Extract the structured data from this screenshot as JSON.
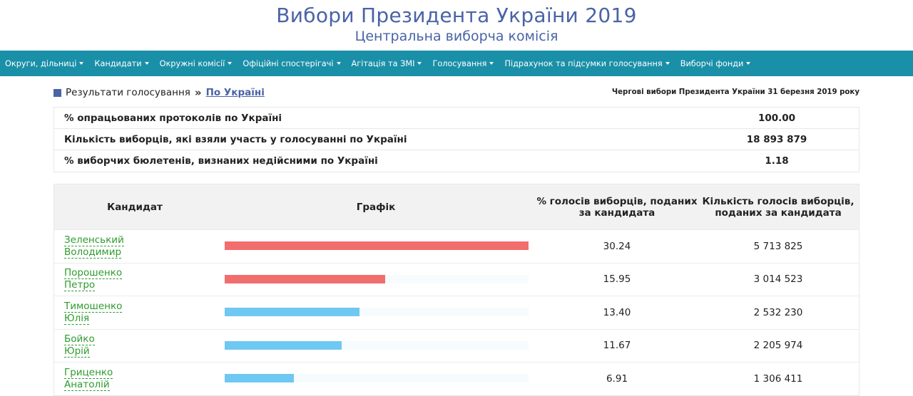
{
  "header": {
    "title": "Вибори Президента України 2019",
    "subtitle": "Центральна виборча комісія"
  },
  "nav": [
    {
      "label": "Округи, дільниці"
    },
    {
      "label": "Кандидати"
    },
    {
      "label": "Окружні комісії"
    },
    {
      "label": "Офіційні спостерігачі"
    },
    {
      "label": "Агітація та ЗМІ"
    },
    {
      "label": "Голосування"
    },
    {
      "label": "Підрахунок та підсумки голосування"
    },
    {
      "label": "Виборчі фонди"
    }
  ],
  "breadcrumb": {
    "section": "Результати голосування",
    "separator": "»",
    "current": "По Україні"
  },
  "election_note": "Чергові вибори Президента України 31 березня 2019 року",
  "summary": [
    {
      "label": "% опрацьованих протоколів по Україні",
      "value": "100.00"
    },
    {
      "label": "Кількість виборців, які взяли участь у голосуванні по Україні",
      "value": "18 893 879"
    },
    {
      "label": "% виборчих бюлетенів, визнаних недійсними по Україні",
      "value": "1.18"
    }
  ],
  "results": {
    "headers": {
      "candidate": "Кандидат",
      "chart": "Графік",
      "percent": "% голосів виборців, поданих за кандидата",
      "votes": "Кількість голосів виборців, поданих за кандидата"
    },
    "max_percent": 30.24,
    "colors": {
      "leader": "#f26d6d",
      "other": "#6ec8f2"
    },
    "rows": [
      {
        "surname": "Зеленський",
        "name": "Володимир",
        "percent": "30.24",
        "votes": "5 713 825",
        "pct_value": 30.24,
        "leader": true
      },
      {
        "surname": "Порошенко",
        "name": "Петро",
        "percent": "15.95",
        "votes": "3 014 523",
        "pct_value": 15.95,
        "leader": true
      },
      {
        "surname": "Тимошенко",
        "name": "Юлія",
        "percent": "13.40",
        "votes": "2 532 230",
        "pct_value": 13.4,
        "leader": false
      },
      {
        "surname": "Бойко",
        "name": "Юрій",
        "percent": "11.67",
        "votes": "2 205 974",
        "pct_value": 11.67,
        "leader": false
      },
      {
        "surname": "Гриценко",
        "name": "Анатолій",
        "percent": "6.91",
        "votes": "1 306 411",
        "pct_value": 6.91,
        "leader": false
      }
    ]
  }
}
